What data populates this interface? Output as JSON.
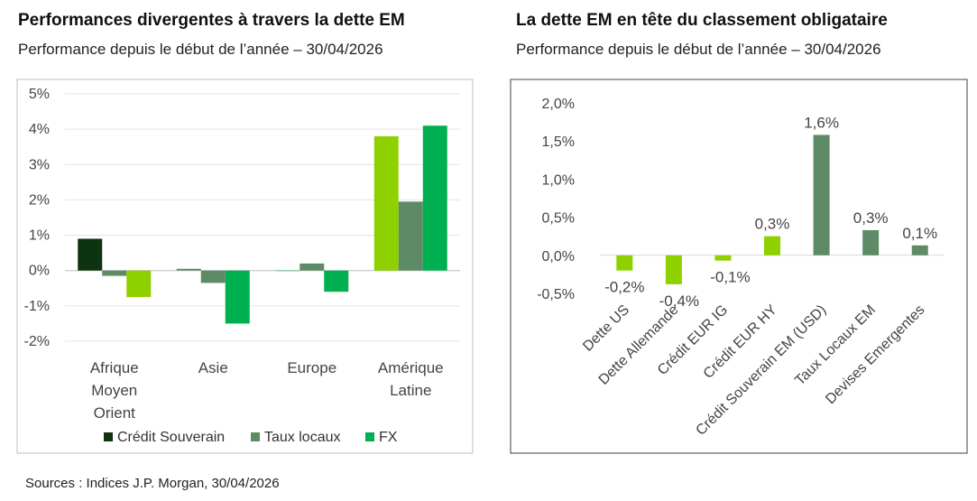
{
  "left": {
    "title": "Performances divergentes à travers la dette EM",
    "subtitle": "Performance depuis le début de l’année – 30/04/2026"
  },
  "right": {
    "title": "La dette EM en tête du classement obligataire",
    "subtitle": "Performance depuis le début de l’année – 30/04/2026"
  },
  "source": "Sources : Indices J.P. Morgan, 30/04/2026",
  "chart_data": [
    {
      "type": "bar",
      "title": "Performances divergentes à travers la dette EM",
      "subtitle": "Performance depuis le début de l’année – 30/04/2026",
      "categories": [
        [
          "Afrique",
          "Moyen",
          "Orient"
        ],
        [
          "Asie"
        ],
        [
          "Europe"
        ],
        [
          "Amérique",
          "Latine"
        ]
      ],
      "series": [
        {
          "name": "Crédit Souverain",
          "color": "#0d3311",
          "values": [
            0.9,
            0.05,
            0.0,
            3.8
          ]
        },
        {
          "name": "Taux locaux",
          "color": "#5f8a66",
          "values": [
            -0.15,
            -0.35,
            0.2,
            1.95
          ]
        },
        {
          "name": "FX",
          "color": "#00b050",
          "values": [
            -0.75,
            -1.5,
            -0.6,
            4.1
          ]
        }
      ],
      "bar_colors_by_category": [
        [
          "#0d3311",
          "#5f8a66",
          "#8fd000"
        ],
        [
          "#5f8a66",
          "#5f8a66",
          "#00b050"
        ],
        [
          "#00b050",
          "#5f8a66",
          "#00b050"
        ],
        [
          "#8fd000",
          "#5f8a66",
          "#00b050"
        ]
      ],
      "yticks": [
        "5%",
        "4%",
        "3%",
        "2%",
        "1%",
        "0%",
        "-1%",
        "-2%"
      ],
      "ytick_values": [
        5,
        4,
        3,
        2,
        1,
        0,
        -1,
        -2
      ],
      "ylim": [
        -2,
        5
      ],
      "grid": true,
      "legend_position": "bottom"
    },
    {
      "type": "bar",
      "title": "La dette EM en tête du classement obligataire",
      "subtitle": "Performance depuis le début de l’année – 30/04/2026",
      "categories": [
        "Dette US",
        "Dette Allemande",
        "Crédit EUR IG",
        "Crédit EUR HY",
        "Crédit Souverain EM (USD)",
        "Taux Locaux EM",
        "Devises Emergentes"
      ],
      "values": [
        -0.2,
        -0.38,
        -0.07,
        0.25,
        1.58,
        0.33,
        0.13
      ],
      "data_labels": [
        "-0,2%",
        "-0,4%",
        "-0,1%",
        "0,3%",
        "1,6%",
        "0,3%",
        "0,1%"
      ],
      "colors": [
        "#8fd000",
        "#8fd000",
        "#8fd000",
        "#8fd000",
        "#5f8a66",
        "#5f8a66",
        "#5f8a66"
      ],
      "yticks": [
        "2,0%",
        "1,5%",
        "1,0%",
        "0,5%",
        "0,0%",
        "-0,5%"
      ],
      "ytick_values": [
        2.0,
        1.5,
        1.0,
        0.5,
        0.0,
        -0.5
      ],
      "ylim": [
        -0.5,
        2.0
      ],
      "grid": false,
      "legend_position": "none"
    }
  ]
}
